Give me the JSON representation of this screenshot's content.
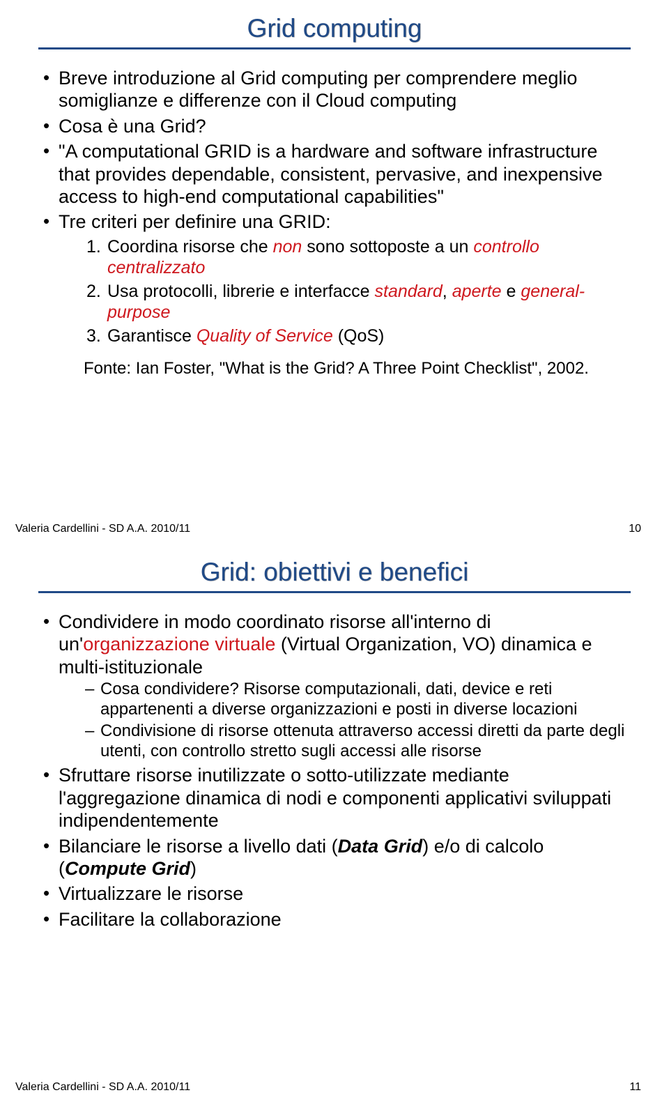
{
  "slide1": {
    "title": "Grid computing",
    "b1": "Breve introduzione al Grid computing per comprendere meglio somiglianze e differenze con il Cloud computing",
    "b2": "Cosa è una Grid?",
    "b3": "\"A computational GRID is a hardware and software infrastructure that provides dependable, consistent, pervasive, and inexpensive access to high-end computational capabilities\"",
    "b4": "Tre criteri per definire una GRID:",
    "n1a": "Coordina risorse che ",
    "n1b": "non",
    "n1c": " sono sottoposte a un ",
    "n1d": "controllo centralizzato",
    "n2a": "Usa protocolli, librerie e interfacce ",
    "n2b": "standard",
    "n2c": ", ",
    "n2d": "aperte",
    "n2e": " e ",
    "n2f": "general-purpose",
    "n3a": "Garantisce ",
    "n3b": "Quality of Service",
    "n3c": " (QoS)",
    "source": "Fonte: Ian Foster, \"What is the Grid? A Three Point Checklist\", 2002.",
    "footer": "Valeria Cardellini - SD A.A. 2010/11",
    "pagenum": "10"
  },
  "slide2": {
    "title": "Grid: obiettivi e benefici",
    "b1a": "Condividere in modo coordinato risorse all'interno di un'",
    "b1b": "organizzazione virtuale",
    "b1c": " (Virtual Organization, VO) dinamica e multi-istituzionale",
    "d1": "Cosa condividere? Risorse computazionali, dati, device e reti appartenenti a diverse organizzazioni e posti in diverse locazioni",
    "d2": "Condivisione di risorse ottenuta attraverso accessi diretti da parte degli utenti, con controllo stretto sugli accessi alle risorse",
    "b2": "Sfruttare risorse inutilizzate o sotto-utilizzate mediante l'aggregazione dinamica di nodi e componenti applicativi sviluppati indipendentemente",
    "b3a": "Bilanciare le risorse a livello dati (",
    "b3b": "Data Grid",
    "b3c": ") e/o di calcolo (",
    "b3d": "Compute Grid",
    "b3e": ")",
    "b4": "Virtualizzare le risorse",
    "b5": "Facilitare la collaborazione",
    "footer": "Valeria Cardellini - SD A.A. 2010/11",
    "pagenum": "11"
  },
  "colors": {
    "title_color": "#204a87",
    "rule_color": "#204a87",
    "accent_red": "#ce181e",
    "background": "#ffffff",
    "text": "#000000"
  }
}
